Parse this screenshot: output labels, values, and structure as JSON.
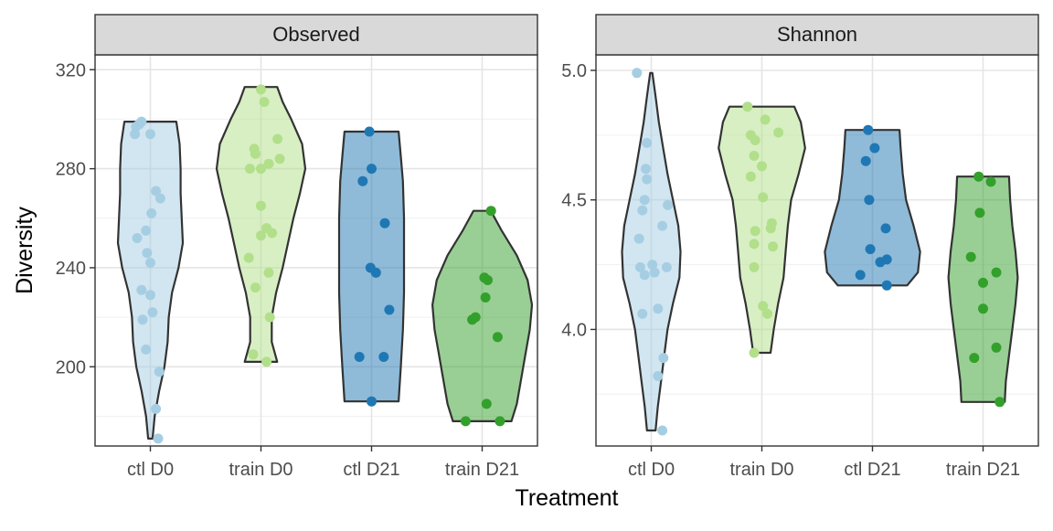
{
  "chart_data": {
    "type": "violin-jitter",
    "xlabel": "Treatment",
    "ylabel": "Diversity",
    "categories": [
      "ctl D0",
      "train D0",
      "ctl D21",
      "train D21"
    ],
    "colors": {
      "ctl D0": "#a6cee3",
      "train D0": "#b2df8a",
      "ctl D21": "#1f78b4",
      "train D21": "#33a02c"
    },
    "grid": true,
    "panels": [
      {
        "strip": "Observed",
        "ylim": [
          168,
          326
        ],
        "yticks": [
          200,
          240,
          280,
          320
        ],
        "groups": [
          {
            "category": "ctl D0",
            "points": [
              {
                "dx": 0.07,
                "y": 171
              },
              {
                "dx": 0.05,
                "y": 183
              },
              {
                "dx": 0.08,
                "y": 198
              },
              {
                "dx": -0.04,
                "y": 207
              },
              {
                "dx": -0.07,
                "y": 219
              },
              {
                "dx": 0.02,
                "y": 222
              },
              {
                "dx": 0.0,
                "y": 229
              },
              {
                "dx": -0.08,
                "y": 231
              },
              {
                "dx": 0.0,
                "y": 242
              },
              {
                "dx": -0.03,
                "y": 246
              },
              {
                "dx": -0.12,
                "y": 252
              },
              {
                "dx": -0.04,
                "y": 255
              },
              {
                "dx": 0.01,
                "y": 262
              },
              {
                "dx": 0.09,
                "y": 268
              },
              {
                "dx": 0.05,
                "y": 271
              },
              {
                "dx": -0.14,
                "y": 294
              },
              {
                "dx": 0.0,
                "y": 294
              },
              {
                "dx": -0.13,
                "y": 297
              },
              {
                "dx": -0.1,
                "y": 298
              },
              {
                "dx": -0.08,
                "y": 299
              }
            ],
            "violin": [
              [
                171,
                0.02
              ],
              [
                180,
                0.04
              ],
              [
                190,
                0.08
              ],
              [
                200,
                0.13
              ],
              [
                210,
                0.16
              ],
              [
                220,
                0.17
              ],
              [
                230,
                0.2
              ],
              [
                240,
                0.26
              ],
              [
                250,
                0.3
              ],
              [
                260,
                0.29
              ],
              [
                270,
                0.28
              ],
              [
                280,
                0.28
              ],
              [
                290,
                0.27
              ],
              [
                299,
                0.24
              ]
            ]
          },
          {
            "category": "train D0",
            "points": [
              {
                "dx": 0.05,
                "y": 202
              },
              {
                "dx": -0.07,
                "y": 205
              },
              {
                "dx": 0.08,
                "y": 220
              },
              {
                "dx": -0.05,
                "y": 232
              },
              {
                "dx": -0.11,
                "y": 244
              },
              {
                "dx": 0.07,
                "y": 238
              },
              {
                "dx": 0.1,
                "y": 254
              },
              {
                "dx": 0.0,
                "y": 253
              },
              {
                "dx": 0.05,
                "y": 256
              },
              {
                "dx": 0.0,
                "y": 265
              },
              {
                "dx": -0.1,
                "y": 280
              },
              {
                "dx": 0.0,
                "y": 280
              },
              {
                "dx": 0.07,
                "y": 282
              },
              {
                "dx": 0.17,
                "y": 284
              },
              {
                "dx": -0.05,
                "y": 286
              },
              {
                "dx": -0.06,
                "y": 288
              },
              {
                "dx": 0.15,
                "y": 292
              },
              {
                "dx": 0.03,
                "y": 307
              },
              {
                "dx": 0.0,
                "y": 312
              }
            ],
            "violin": [
              [
                202,
                0.15
              ],
              [
                210,
                0.1
              ],
              [
                220,
                0.1
              ],
              [
                230,
                0.14
              ],
              [
                240,
                0.2
              ],
              [
                250,
                0.25
              ],
              [
                260,
                0.3
              ],
              [
                270,
                0.36
              ],
              [
                280,
                0.41
              ],
              [
                290,
                0.38
              ],
              [
                300,
                0.28
              ],
              [
                307,
                0.2
              ],
              [
                313,
                0.15
              ]
            ]
          },
          {
            "category": "ctl D21",
            "points": [
              {
                "dx": 0.0,
                "y": 186
              },
              {
                "dx": -0.11,
                "y": 204
              },
              {
                "dx": 0.11,
                "y": 204
              },
              {
                "dx": 0.16,
                "y": 223
              },
              {
                "dx": 0.04,
                "y": 238
              },
              {
                "dx": -0.01,
                "y": 240
              },
              {
                "dx": 0.12,
                "y": 258
              },
              {
                "dx": -0.08,
                "y": 275
              },
              {
                "dx": 0.0,
                "y": 280
              },
              {
                "dx": -0.02,
                "y": 295
              }
            ],
            "violin": [
              [
                186,
                0.25
              ],
              [
                200,
                0.27
              ],
              [
                215,
                0.29
              ],
              [
                230,
                0.3
              ],
              [
                245,
                0.3
              ],
              [
                260,
                0.3
              ],
              [
                275,
                0.29
              ],
              [
                285,
                0.27
              ],
              [
                295,
                0.25
              ]
            ]
          },
          {
            "category": "train D21",
            "points": [
              {
                "dx": -0.15,
                "y": 178
              },
              {
                "dx": 0.16,
                "y": 178
              },
              {
                "dx": 0.04,
                "y": 185
              },
              {
                "dx": 0.14,
                "y": 212
              },
              {
                "dx": -0.09,
                "y": 219
              },
              {
                "dx": -0.06,
                "y": 220
              },
              {
                "dx": 0.03,
                "y": 228
              },
              {
                "dx": 0.05,
                "y": 235
              },
              {
                "dx": 0.02,
                "y": 236
              },
              {
                "dx": 0.08,
                "y": 263
              }
            ],
            "violin": [
              [
                178,
                0.27
              ],
              [
                185,
                0.32
              ],
              [
                195,
                0.36
              ],
              [
                205,
                0.4
              ],
              [
                215,
                0.44
              ],
              [
                225,
                0.46
              ],
              [
                235,
                0.42
              ],
              [
                245,
                0.32
              ],
              [
                255,
                0.18
              ],
              [
                263,
                0.08
              ]
            ]
          }
        ]
      },
      {
        "strip": "Shannon",
        "ylim": [
          3.55,
          5.06
        ],
        "yticks": [
          4.0,
          4.5,
          5.0
        ],
        "groups": [
          {
            "category": "ctl D0",
            "points": [
              {
                "dx": 0.1,
                "y": 3.61
              },
              {
                "dx": 0.06,
                "y": 3.82
              },
              {
                "dx": 0.11,
                "y": 3.89
              },
              {
                "dx": -0.08,
                "y": 4.06
              },
              {
                "dx": 0.06,
                "y": 4.08
              },
              {
                "dx": -0.06,
                "y": 4.21
              },
              {
                "dx": 0.03,
                "y": 4.22
              },
              {
                "dx": -0.1,
                "y": 4.24
              },
              {
                "dx": 0.14,
                "y": 4.24
              },
              {
                "dx": 0.01,
                "y": 4.25
              },
              {
                "dx": -0.11,
                "y": 4.35
              },
              {
                "dx": 0.1,
                "y": 4.4
              },
              {
                "dx": -0.08,
                "y": 4.46
              },
              {
                "dx": 0.15,
                "y": 4.48
              },
              {
                "dx": -0.06,
                "y": 4.5
              },
              {
                "dx": -0.04,
                "y": 4.58
              },
              {
                "dx": -0.05,
                "y": 4.62
              },
              {
                "dx": -0.04,
                "y": 4.72
              },
              {
                "dx": -0.13,
                "y": 4.99
              }
            ],
            "violin": [
              [
                3.61,
                0.04
              ],
              [
                3.7,
                0.06
              ],
              [
                3.8,
                0.09
              ],
              [
                3.9,
                0.12
              ],
              [
                4.0,
                0.15
              ],
              [
                4.1,
                0.2
              ],
              [
                4.2,
                0.26
              ],
              [
                4.3,
                0.27
              ],
              [
                4.4,
                0.25
              ],
              [
                4.5,
                0.2
              ],
              [
                4.6,
                0.15
              ],
              [
                4.7,
                0.11
              ],
              [
                4.8,
                0.07
              ],
              [
                4.9,
                0.04
              ],
              [
                4.99,
                0.01
              ]
            ]
          },
          {
            "category": "train D0",
            "points": [
              {
                "dx": -0.07,
                "y": 3.91
              },
              {
                "dx": 0.05,
                "y": 4.06
              },
              {
                "dx": 0.01,
                "y": 4.09
              },
              {
                "dx": -0.07,
                "y": 4.24
              },
              {
                "dx": -0.07,
                "y": 4.33
              },
              {
                "dx": 0.1,
                "y": 4.32
              },
              {
                "dx": -0.06,
                "y": 4.38
              },
              {
                "dx": 0.08,
                "y": 4.39
              },
              {
                "dx": 0.09,
                "y": 4.41
              },
              {
                "dx": 0.01,
                "y": 4.51
              },
              {
                "dx": -0.1,
                "y": 4.59
              },
              {
                "dx": 0.0,
                "y": 4.63
              },
              {
                "dx": -0.07,
                "y": 4.67
              },
              {
                "dx": -0.06,
                "y": 4.73
              },
              {
                "dx": -0.1,
                "y": 4.75
              },
              {
                "dx": 0.15,
                "y": 4.76
              },
              {
                "dx": 0.03,
                "y": 4.81
              },
              {
                "dx": -0.13,
                "y": 4.86
              }
            ],
            "violin": [
              [
                3.91,
                0.08
              ],
              [
                4.0,
                0.11
              ],
              [
                4.1,
                0.15
              ],
              [
                4.2,
                0.2
              ],
              [
                4.3,
                0.22
              ],
              [
                4.4,
                0.24
              ],
              [
                4.5,
                0.27
              ],
              [
                4.6,
                0.34
              ],
              [
                4.7,
                0.4
              ],
              [
                4.8,
                0.36
              ],
              [
                4.86,
                0.3
              ]
            ]
          },
          {
            "category": "ctl D21",
            "points": [
              {
                "dx": -0.11,
                "y": 4.21
              },
              {
                "dx": 0.13,
                "y": 4.17
              },
              {
                "dx": 0.07,
                "y": 4.26
              },
              {
                "dx": 0.13,
                "y": 4.27
              },
              {
                "dx": -0.02,
                "y": 4.31
              },
              {
                "dx": 0.12,
                "y": 4.39
              },
              {
                "dx": -0.03,
                "y": 4.5
              },
              {
                "dx": -0.06,
                "y": 4.65
              },
              {
                "dx": 0.02,
                "y": 4.7
              },
              {
                "dx": -0.04,
                "y": 4.77
              }
            ],
            "violin": [
              [
                4.17,
                0.32
              ],
              [
                4.22,
                0.42
              ],
              [
                4.3,
                0.44
              ],
              [
                4.4,
                0.38
              ],
              [
                4.5,
                0.31
              ],
              [
                4.6,
                0.28
              ],
              [
                4.7,
                0.26
              ],
              [
                4.77,
                0.25
              ]
            ]
          },
          {
            "category": "train D21",
            "points": [
              {
                "dx": 0.15,
                "y": 3.72
              },
              {
                "dx": -0.08,
                "y": 3.89
              },
              {
                "dx": 0.12,
                "y": 3.93
              },
              {
                "dx": 0.0,
                "y": 4.08
              },
              {
                "dx": 0.0,
                "y": 4.18
              },
              {
                "dx": 0.12,
                "y": 4.22
              },
              {
                "dx": -0.11,
                "y": 4.28
              },
              {
                "dx": -0.03,
                "y": 4.45
              },
              {
                "dx": 0.07,
                "y": 4.57
              },
              {
                "dx": -0.04,
                "y": 4.59
              }
            ],
            "violin": [
              [
                3.72,
                0.2
              ],
              [
                3.8,
                0.21
              ],
              [
                3.9,
                0.24
              ],
              [
                4.0,
                0.27
              ],
              [
                4.1,
                0.3
              ],
              [
                4.2,
                0.32
              ],
              [
                4.3,
                0.3
              ],
              [
                4.4,
                0.27
              ],
              [
                4.5,
                0.25
              ],
              [
                4.59,
                0.24
              ]
            ]
          }
        ]
      }
    ]
  }
}
